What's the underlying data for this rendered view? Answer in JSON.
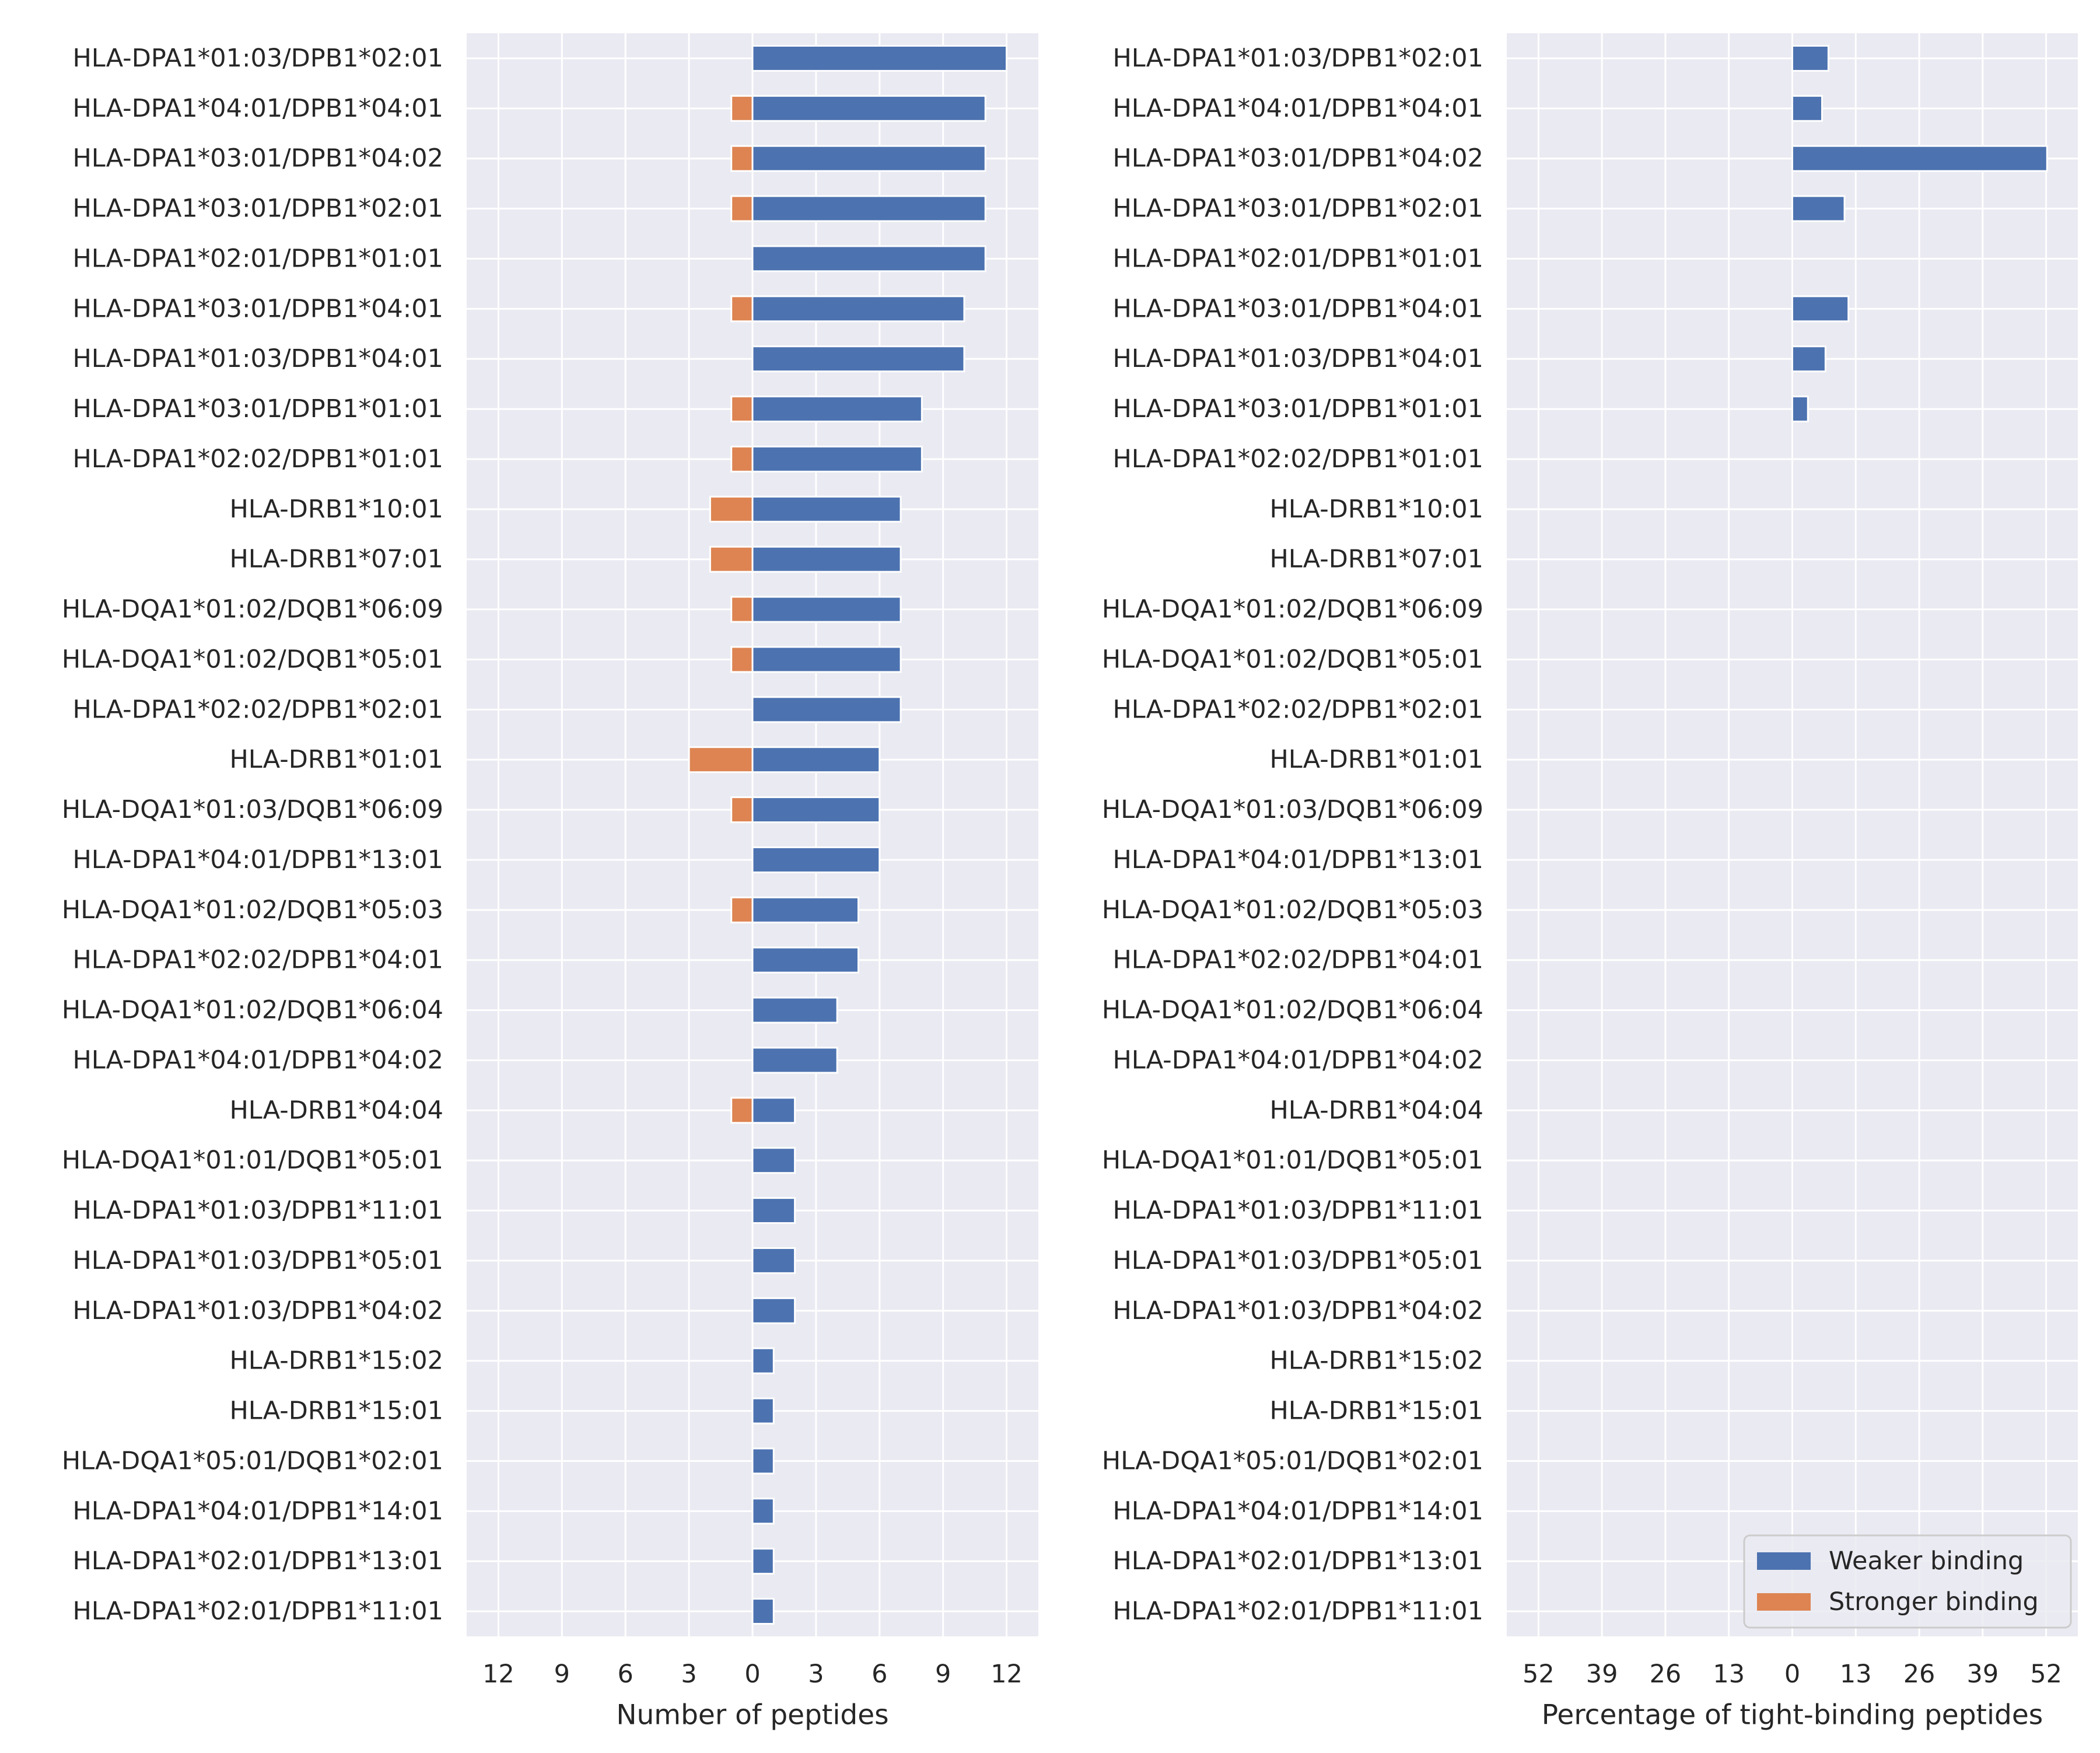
{
  "chart_data": [
    {
      "type": "bar",
      "orientation": "horizontal",
      "stacked": "diverging",
      "xlabel": "Number of peptides",
      "ylabel": "",
      "xlim": [
        -13.5,
        13.5
      ],
      "xticks": [
        -12,
        -9,
        -6,
        -3,
        0,
        3,
        6,
        9,
        12
      ],
      "xtick_labels": [
        "12",
        "9",
        "6",
        "3",
        "0",
        "3",
        "6",
        "9",
        "12"
      ],
      "grid": true,
      "categories": [
        "HLA-DPA1*01:03/DPB1*02:01",
        "HLA-DPA1*04:01/DPB1*04:01",
        "HLA-DPA1*03:01/DPB1*04:02",
        "HLA-DPA1*03:01/DPB1*02:01",
        "HLA-DPA1*02:01/DPB1*01:01",
        "HLA-DPA1*03:01/DPB1*04:01",
        "HLA-DPA1*01:03/DPB1*04:01",
        "HLA-DPA1*03:01/DPB1*01:01",
        "HLA-DPA1*02:02/DPB1*01:01",
        "HLA-DRB1*10:01",
        "HLA-DRB1*07:01",
        "HLA-DQA1*01:02/DQB1*06:09",
        "HLA-DQA1*01:02/DQB1*05:01",
        "HLA-DPA1*02:02/DPB1*02:01",
        "HLA-DRB1*01:01",
        "HLA-DQA1*01:03/DQB1*06:09",
        "HLA-DPA1*04:01/DPB1*13:01",
        "HLA-DQA1*01:02/DQB1*05:03",
        "HLA-DPA1*02:02/DPB1*04:01",
        "HLA-DQA1*01:02/DQB1*06:04",
        "HLA-DPA1*04:01/DPB1*04:02",
        "HLA-DRB1*04:04",
        "HLA-DQA1*01:01/DQB1*05:01",
        "HLA-DPA1*01:03/DPB1*11:01",
        "HLA-DPA1*01:03/DPB1*05:01",
        "HLA-DPA1*01:03/DPB1*04:02",
        "HLA-DRB1*15:02",
        "HLA-DRB1*15:01",
        "HLA-DQA1*05:01/DQB1*02:01",
        "HLA-DPA1*04:01/DPB1*14:01",
        "HLA-DPA1*02:01/DPB1*13:01",
        "HLA-DPA1*02:01/DPB1*11:01"
      ],
      "series": [
        {
          "name": "Weaker binding",
          "color": "#4c72b0",
          "direction": "positive",
          "values": [
            12,
            11,
            11,
            11,
            11,
            10,
            10,
            8,
            8,
            7,
            7,
            7,
            7,
            7,
            6,
            6,
            6,
            5,
            5,
            4,
            4,
            2,
            2,
            2,
            2,
            2,
            1,
            1,
            1,
            1,
            1,
            1
          ]
        },
        {
          "name": "Stronger binding",
          "color": "#dd8452",
          "direction": "negative",
          "values": [
            0,
            1,
            1,
            1,
            0,
            1,
            0,
            1,
            1,
            2,
            2,
            1,
            1,
            0,
            3,
            1,
            0,
            1,
            0,
            0,
            0,
            1,
            0,
            0,
            0,
            0,
            0,
            0,
            0,
            0,
            0,
            0
          ]
        }
      ]
    },
    {
      "type": "bar",
      "orientation": "horizontal",
      "stacked": "diverging",
      "xlabel": "Percentage of tight-binding peptides",
      "ylabel": "",
      "xlim": [
        -58.5,
        58.5
      ],
      "xticks": [
        -52,
        -39,
        -26,
        -13,
        0,
        13,
        26,
        39,
        52
      ],
      "xtick_labels": [
        "52",
        "39",
        "26",
        "13",
        "0",
        "13",
        "26",
        "39",
        "52"
      ],
      "grid": true,
      "legend_position": "bottom-right",
      "categories": [
        "HLA-DPA1*01:03/DPB1*02:01",
        "HLA-DPA1*04:01/DPB1*04:01",
        "HLA-DPA1*03:01/DPB1*04:02",
        "HLA-DPA1*03:01/DPB1*02:01",
        "HLA-DPA1*02:01/DPB1*01:01",
        "HLA-DPA1*03:01/DPB1*04:01",
        "HLA-DPA1*01:03/DPB1*04:01",
        "HLA-DPA1*03:01/DPB1*01:01",
        "HLA-DPA1*02:02/DPB1*01:01",
        "HLA-DRB1*10:01",
        "HLA-DRB1*07:01",
        "HLA-DQA1*01:02/DQB1*06:09",
        "HLA-DQA1*01:02/DQB1*05:01",
        "HLA-DPA1*02:02/DPB1*02:01",
        "HLA-DRB1*01:01",
        "HLA-DQA1*01:03/DQB1*06:09",
        "HLA-DPA1*04:01/DPB1*13:01",
        "HLA-DQA1*01:02/DQB1*05:03",
        "HLA-DPA1*02:02/DPB1*04:01",
        "HLA-DQA1*01:02/DQB1*06:04",
        "HLA-DPA1*04:01/DPB1*04:02",
        "HLA-DRB1*04:04",
        "HLA-DQA1*01:01/DQB1*05:01",
        "HLA-DPA1*01:03/DPB1*11:01",
        "HLA-DPA1*01:03/DPB1*05:01",
        "HLA-DPA1*01:03/DPB1*04:02",
        "HLA-DRB1*15:02",
        "HLA-DRB1*15:01",
        "HLA-DQA1*05:01/DQB1*02:01",
        "HLA-DPA1*04:01/DPB1*14:01",
        "HLA-DPA1*02:01/DPB1*13:01",
        "HLA-DPA1*02:01/DPB1*11:01"
      ],
      "series": [
        {
          "name": "Weaker binding",
          "color": "#4c72b0",
          "direction": "positive",
          "values": [
            7.4,
            6.1,
            52.2,
            10.7,
            0,
            11.5,
            6.8,
            3.2,
            0,
            0,
            0,
            0,
            0,
            0,
            0,
            0,
            0,
            0,
            0,
            0,
            0,
            0,
            0,
            0,
            0,
            0,
            0,
            0,
            0,
            0,
            0,
            0
          ]
        },
        {
          "name": "Stronger binding",
          "color": "#dd8452",
          "direction": "negative",
          "values": [
            0,
            0,
            0,
            0,
            0,
            0,
            0,
            0,
            0,
            0,
            0,
            0,
            0,
            0,
            0,
            0,
            0,
            0,
            0,
            0,
            0,
            0,
            0,
            0,
            0,
            0,
            0,
            0,
            0,
            0,
            0,
            0
          ]
        }
      ]
    }
  ],
  "legend": {
    "items": [
      {
        "label": "Weaker binding",
        "color": "#4c72b0"
      },
      {
        "label": "Stronger binding",
        "color": "#dd8452"
      }
    ]
  },
  "colors": {
    "plot_background": "#eaeaf2",
    "grid": "#ffffff"
  }
}
